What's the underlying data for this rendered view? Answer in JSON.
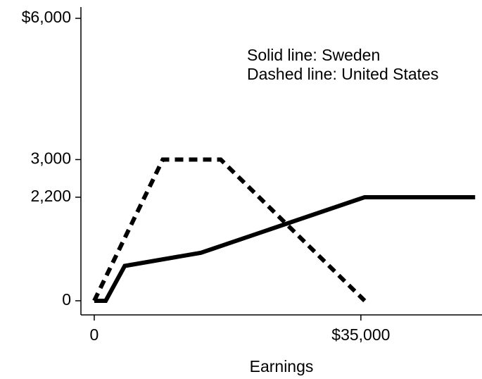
{
  "chart_data": {
    "type": "line",
    "xlabel": "Earnings",
    "annotations": [
      "Solid line: Sweden",
      "Dashed line: United States"
    ],
    "xlim": [
      -1750,
      50900
    ],
    "ylim": [
      -300,
      6240
    ],
    "xticks": [
      {
        "value": 0,
        "label": "0"
      },
      {
        "value": 35000,
        "label": "$35,000"
      }
    ],
    "yticks": [
      {
        "value": 0,
        "label": "0"
      },
      {
        "value": 2200,
        "label": "2,200"
      },
      {
        "value": 3000,
        "label": "3,000"
      },
      {
        "value": 6000,
        "label": "$6,000"
      }
    ],
    "series": [
      {
        "color": "#000000",
        "dashed": false,
        "x": [
          0,
          1500,
          4000,
          14000,
          35500,
          50000
        ],
        "values": [
          0,
          0,
          740,
          1020,
          2200,
          2200
        ]
      },
      {
        "color": "#000000",
        "dashed": true,
        "x": [
          0,
          9000,
          16600,
          35500
        ],
        "values": [
          0,
          3000,
          3000,
          0
        ]
      }
    ]
  }
}
